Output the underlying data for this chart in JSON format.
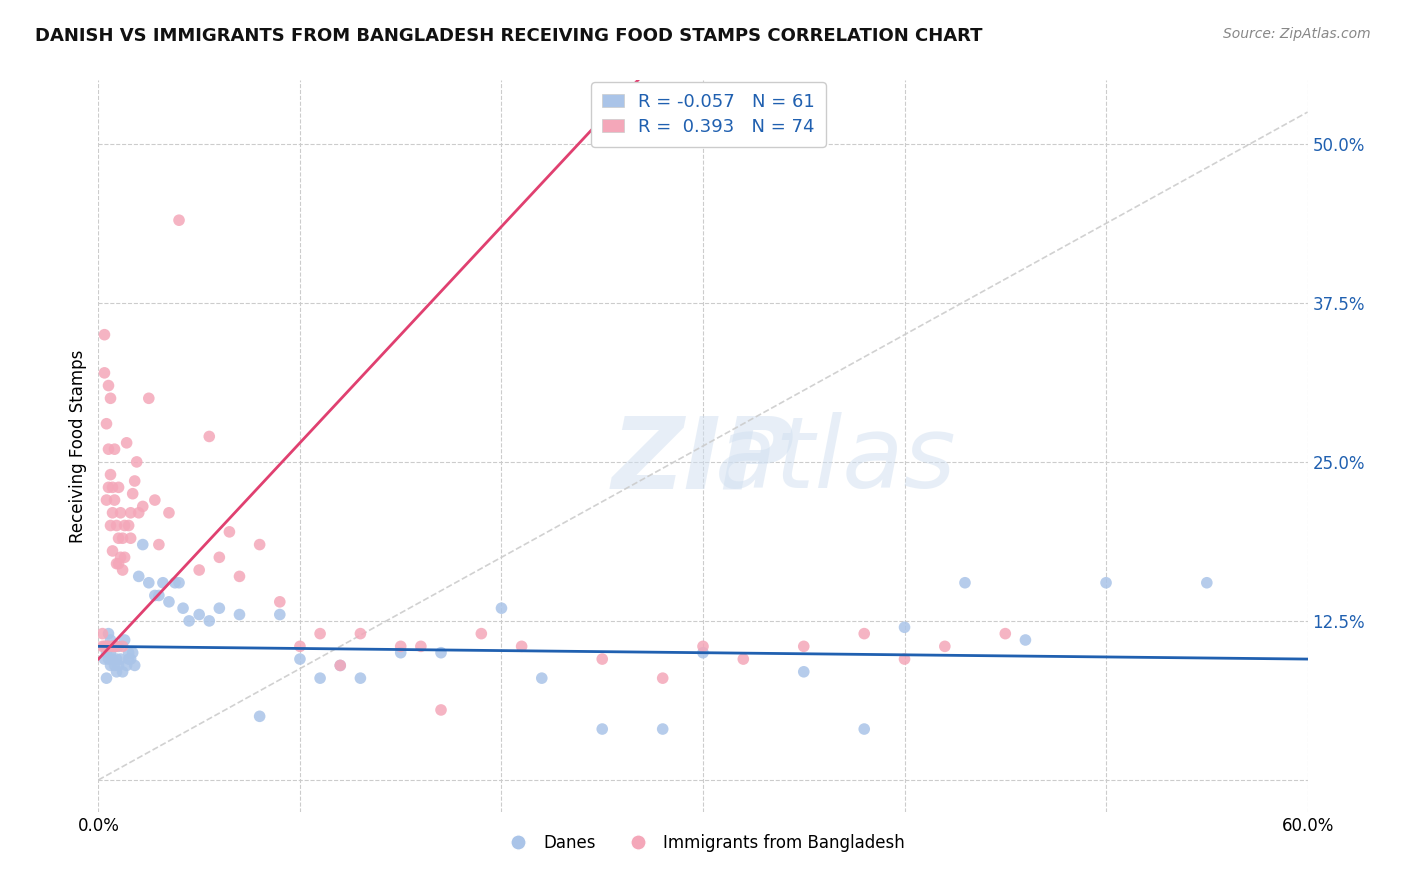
{
  "title": "DANISH VS IMMIGRANTS FROM BANGLADESH RECEIVING FOOD STAMPS CORRELATION CHART",
  "source": "Source: ZipAtlas.com",
  "ylabel": "Receiving Food Stamps",
  "xlim": [
    0.0,
    0.6
  ],
  "ylim": [
    -0.025,
    0.55
  ],
  "yticks_right": [
    0.0,
    0.125,
    0.25,
    0.375,
    0.5
  ],
  "ytick_right_labels": [
    "",
    "12.5%",
    "25.0%",
    "37.5%",
    "50.0%"
  ],
  "background_color": "#ffffff",
  "grid_color": "#cccccc",
  "blue_color": "#aac4e8",
  "pink_color": "#f4a7b9",
  "blue_line_color": "#2060b0",
  "pink_line_color": "#e04070",
  "dashed_line_color": "#cccccc",
  "legend_blue_R": "R = -0.057",
  "legend_blue_N": "N = 61",
  "legend_pink_R": "R =  0.393",
  "legend_pink_N": "N = 74",
  "legend_dane_label": "Danes",
  "legend_bangladesh_label": "Immigrants from Bangladesh",
  "danes_x": [
    0.003,
    0.004,
    0.004,
    0.005,
    0.005,
    0.005,
    0.006,
    0.006,
    0.006,
    0.007,
    0.007,
    0.008,
    0.008,
    0.009,
    0.009,
    0.01,
    0.01,
    0.011,
    0.012,
    0.013,
    0.014,
    0.015,
    0.015,
    0.016,
    0.017,
    0.018,
    0.02,
    0.022,
    0.025,
    0.028,
    0.03,
    0.032,
    0.035,
    0.038,
    0.04,
    0.042,
    0.045,
    0.05,
    0.055,
    0.06,
    0.07,
    0.08,
    0.09,
    0.1,
    0.11,
    0.12,
    0.13,
    0.15,
    0.17,
    0.2,
    0.22,
    0.25,
    0.28,
    0.3,
    0.35,
    0.38,
    0.4,
    0.43,
    0.46,
    0.5,
    0.55
  ],
  "danes_y": [
    0.095,
    0.1,
    0.08,
    0.095,
    0.105,
    0.115,
    0.09,
    0.1,
    0.11,
    0.095,
    0.105,
    0.09,
    0.105,
    0.085,
    0.095,
    0.09,
    0.105,
    0.095,
    0.085,
    0.11,
    0.09,
    0.095,
    0.1,
    0.095,
    0.1,
    0.09,
    0.16,
    0.185,
    0.155,
    0.145,
    0.145,
    0.155,
    0.14,
    0.155,
    0.155,
    0.135,
    0.125,
    0.13,
    0.125,
    0.135,
    0.13,
    0.05,
    0.13,
    0.095,
    0.08,
    0.09,
    0.08,
    0.1,
    0.1,
    0.135,
    0.08,
    0.04,
    0.04,
    0.1,
    0.085,
    0.04,
    0.12,
    0.155,
    0.11,
    0.155,
    0.155
  ],
  "bangladesh_x": [
    0.002,
    0.002,
    0.003,
    0.003,
    0.003,
    0.004,
    0.004,
    0.004,
    0.005,
    0.005,
    0.005,
    0.005,
    0.006,
    0.006,
    0.006,
    0.007,
    0.007,
    0.007,
    0.007,
    0.008,
    0.008,
    0.008,
    0.009,
    0.009,
    0.009,
    0.01,
    0.01,
    0.01,
    0.011,
    0.011,
    0.012,
    0.012,
    0.012,
    0.013,
    0.013,
    0.014,
    0.015,
    0.016,
    0.016,
    0.017,
    0.018,
    0.019,
    0.02,
    0.022,
    0.025,
    0.028,
    0.03,
    0.035,
    0.04,
    0.05,
    0.055,
    0.06,
    0.065,
    0.07,
    0.08,
    0.09,
    0.1,
    0.11,
    0.12,
    0.13,
    0.15,
    0.16,
    0.17,
    0.19,
    0.21,
    0.25,
    0.28,
    0.3,
    0.32,
    0.35,
    0.38,
    0.4,
    0.42,
    0.45
  ],
  "bangladesh_y": [
    0.105,
    0.115,
    0.32,
    0.35,
    0.105,
    0.28,
    0.105,
    0.22,
    0.23,
    0.26,
    0.31,
    0.105,
    0.2,
    0.24,
    0.3,
    0.18,
    0.21,
    0.23,
    0.105,
    0.22,
    0.26,
    0.105,
    0.17,
    0.2,
    0.105,
    0.17,
    0.19,
    0.23,
    0.175,
    0.21,
    0.165,
    0.19,
    0.105,
    0.175,
    0.2,
    0.265,
    0.2,
    0.19,
    0.21,
    0.225,
    0.235,
    0.25,
    0.21,
    0.215,
    0.3,
    0.22,
    0.185,
    0.21,
    0.44,
    0.165,
    0.27,
    0.175,
    0.195,
    0.16,
    0.185,
    0.14,
    0.105,
    0.115,
    0.09,
    0.115,
    0.105,
    0.105,
    0.055,
    0.115,
    0.105,
    0.095,
    0.08,
    0.105,
    0.095,
    0.105,
    0.115,
    0.095,
    0.105,
    0.115
  ]
}
